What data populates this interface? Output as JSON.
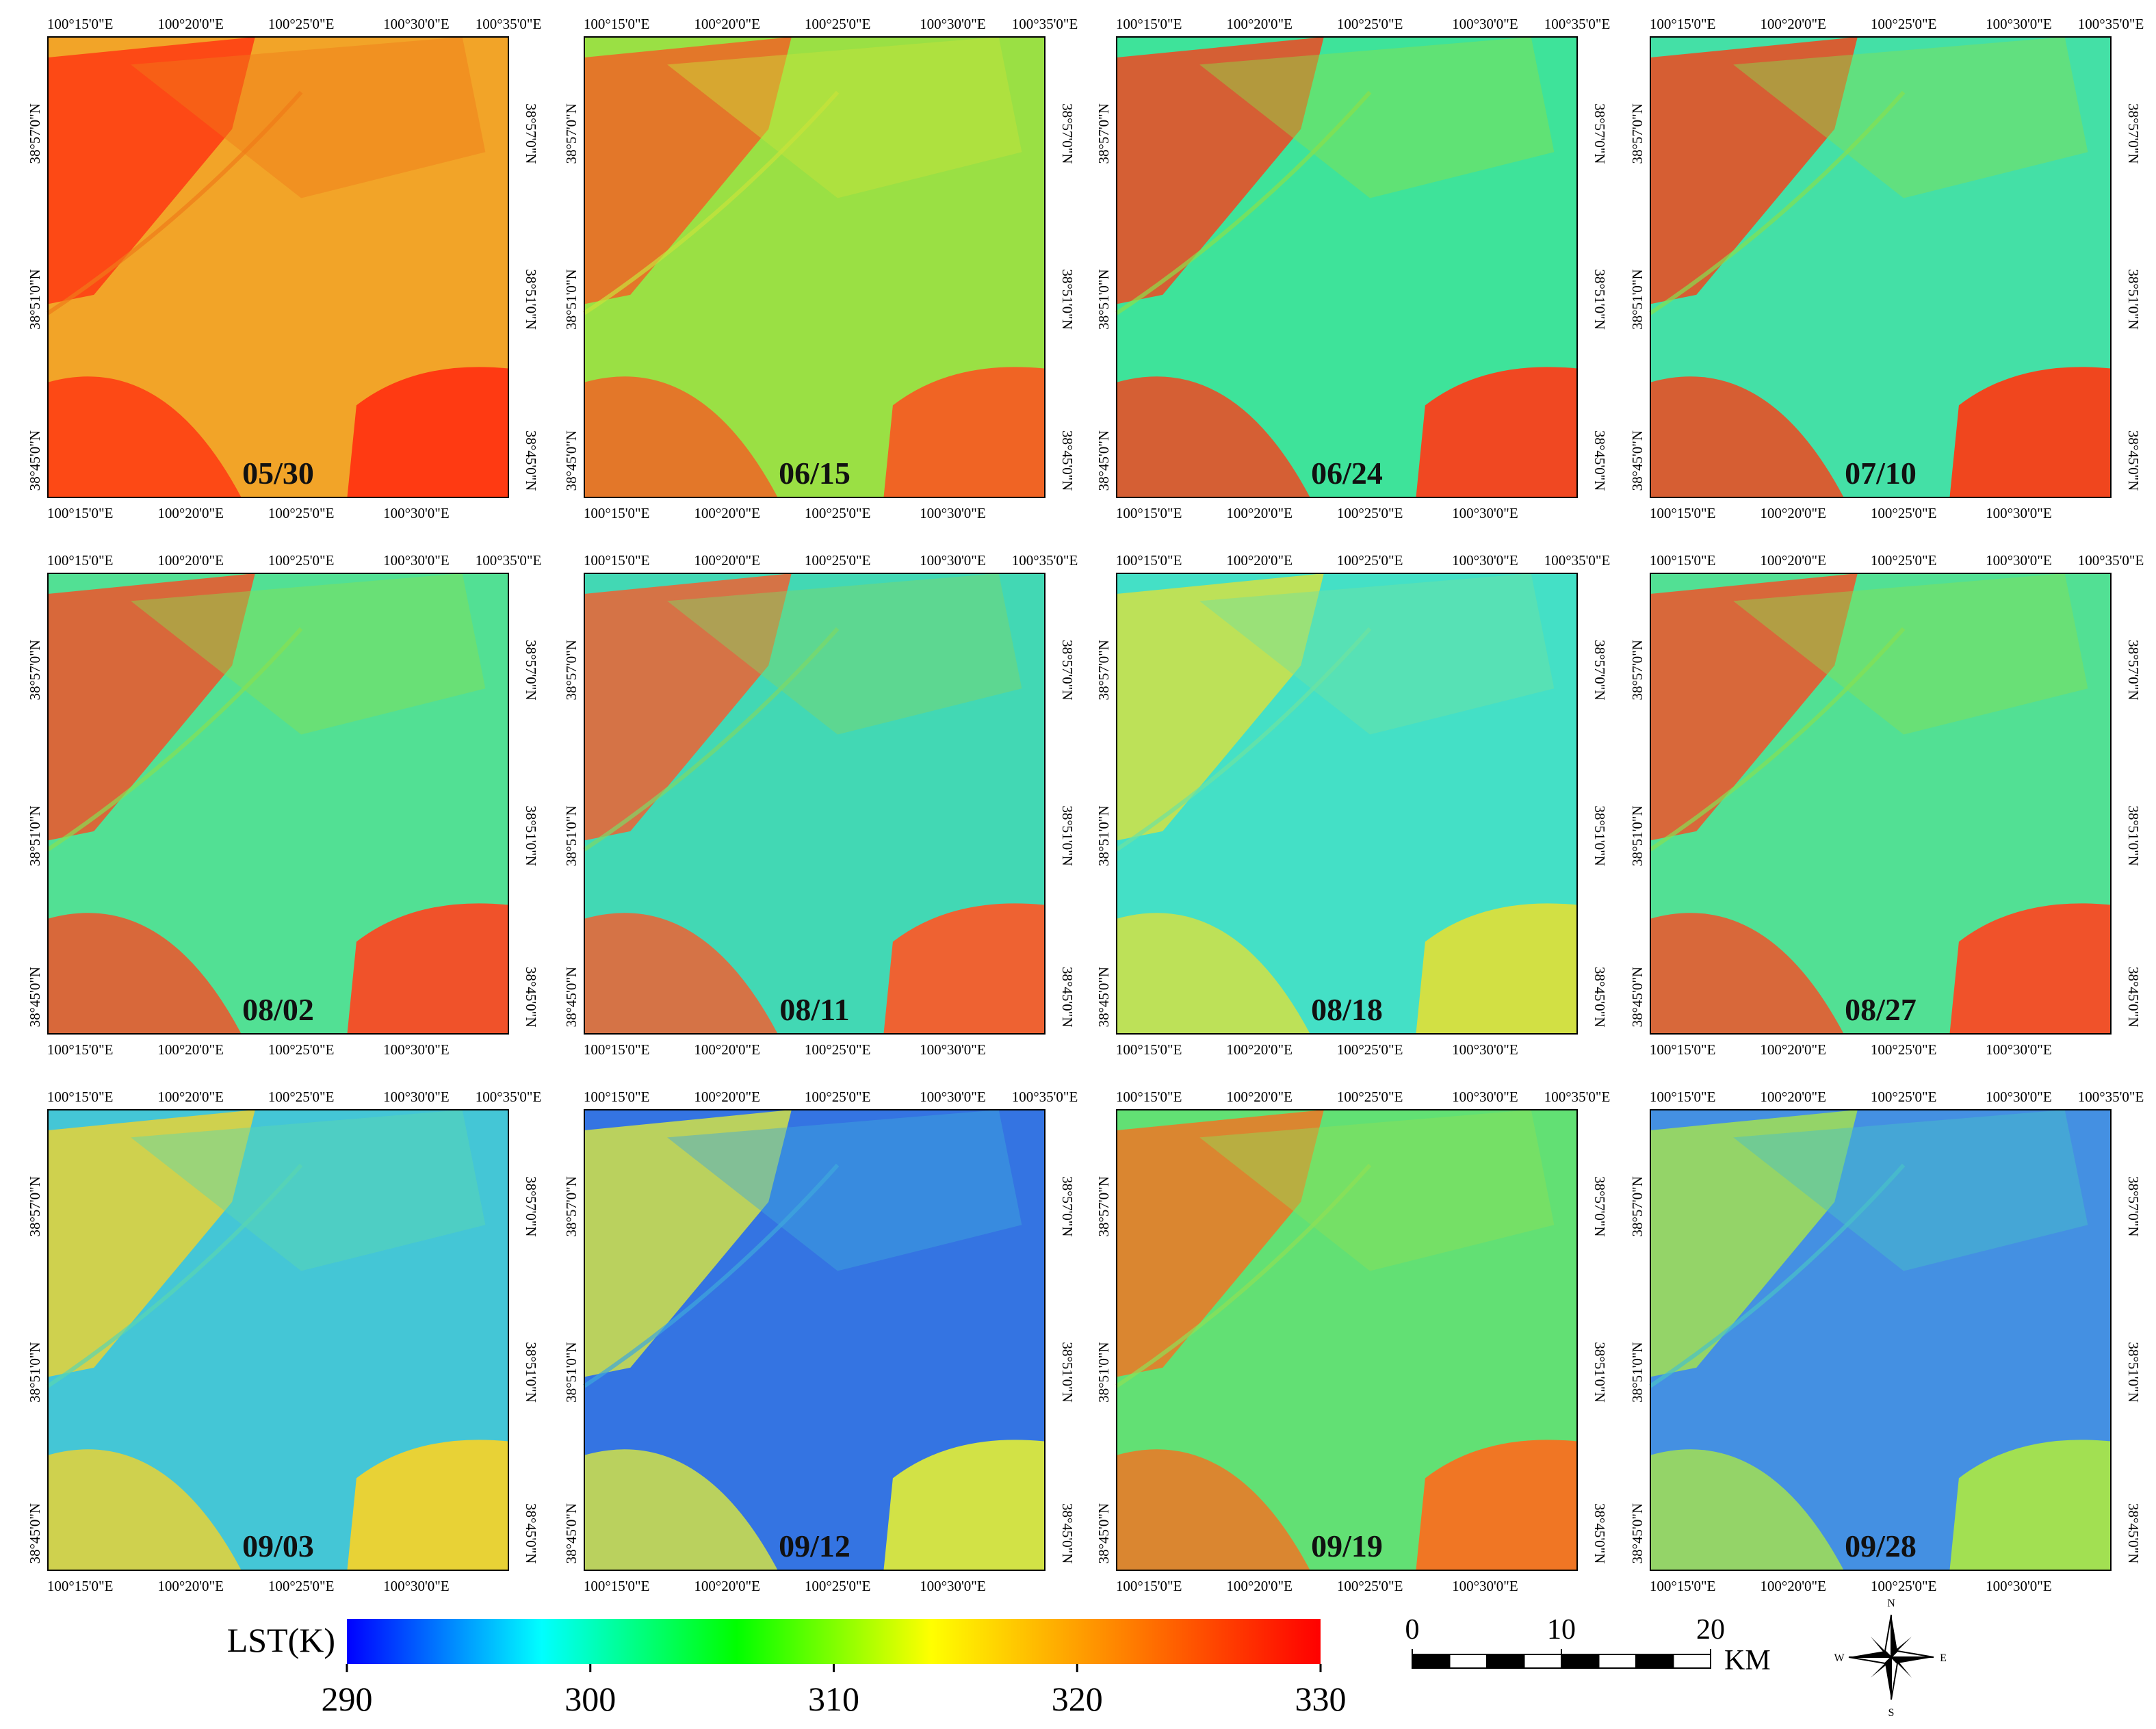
{
  "panels": [
    {
      "date": "05/30"
    },
    {
      "date": "06/15"
    },
    {
      "date": "06/24"
    },
    {
      "date": "07/10"
    },
    {
      "date": "08/02"
    },
    {
      "date": "08/11"
    },
    {
      "date": "08/18"
    },
    {
      "date": "08/27"
    },
    {
      "date": "09/03"
    },
    {
      "date": "09/12"
    },
    {
      "date": "09/19"
    },
    {
      "date": "09/28"
    }
  ],
  "lon_ticks": [
    "100°15'0\"E",
    "100°20'0\"E",
    "100°25'0\"E",
    "100°30'0\"E",
    "100°35'0\"E"
  ],
  "lat_ticks": [
    "38°57'0\"N",
    "38°51'0\"N",
    "38°45'0\"N"
  ],
  "colorbar": {
    "label": "LST(K)",
    "min": 290,
    "max": 330,
    "ticks": [
      290,
      300,
      310,
      320,
      330
    ],
    "colors": [
      "#0000ff",
      "#00ffff",
      "#00ff00",
      "#ffff00",
      "#ff8000",
      "#ff0000"
    ]
  },
  "scale_bar": {
    "ticks": [
      0,
      10,
      20
    ],
    "unit": "KM"
  },
  "compass": {
    "north": "N",
    "east": "E",
    "south": "S",
    "west": "W"
  }
}
